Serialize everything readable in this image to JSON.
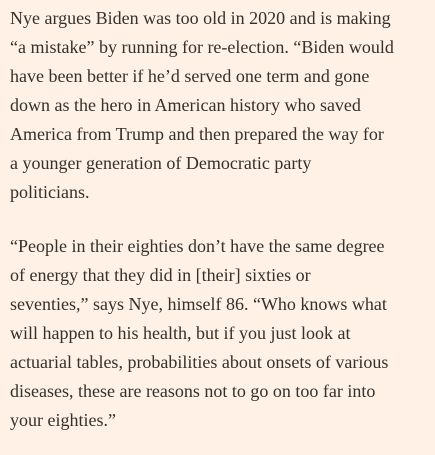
{
  "paragraphs": [
    {
      "lines": [
        "Nye argues Biden was too old in 2020 and is making",
        "“a mistake” by running for re-election. “Biden would",
        "have been better if he’d served one term and gone",
        "down as the hero in American history who saved",
        "America from Trump and then prepared the way for",
        "a younger generation of Democratic party",
        "politicians."
      ]
    },
    {
      "lines": [
        "“People in their eighties don’t have the same degree",
        "of energy that they did in [their] sixties or",
        "seventies,” says Nye, himself 86. “Who knows what",
        "will happen to his health, but if you just look at",
        "actuarial tables, probabilities about onsets of various",
        "diseases, these are reasons not to go on too far into",
        "your eighties.”"
      ]
    }
  ]
}
